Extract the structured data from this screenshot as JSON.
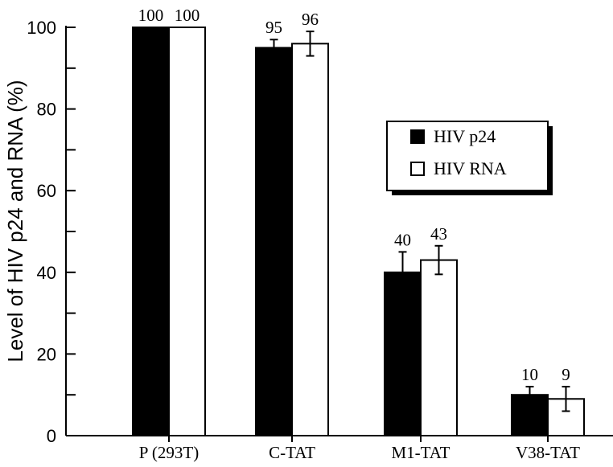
{
  "chart_data": {
    "type": "bar",
    "ylabel": "Level of HIV p24 and RNA (%)",
    "xlabel": "",
    "ylim": [
      0,
      100
    ],
    "yticks": [
      0,
      20,
      40,
      60,
      80,
      100
    ],
    "categories": [
      "P (293T)",
      "C-TAT",
      "M1-TAT",
      "V38-TAT"
    ],
    "series": [
      {
        "name": "HIV p24",
        "color": "#000000",
        "values": [
          100,
          95,
          40,
          10
        ],
        "errors": [
          0,
          2,
          5,
          2
        ],
        "labels": [
          "100",
          "95",
          "40",
          "10"
        ]
      },
      {
        "name": "HIV RNA",
        "color": "#ffffff",
        "values": [
          100,
          96,
          43,
          9
        ],
        "errors": [
          0,
          3,
          3.5,
          3
        ],
        "labels": [
          "100",
          "96",
          "43",
          "9"
        ]
      }
    ],
    "legend": "right, upper-middle",
    "grid": false
  }
}
